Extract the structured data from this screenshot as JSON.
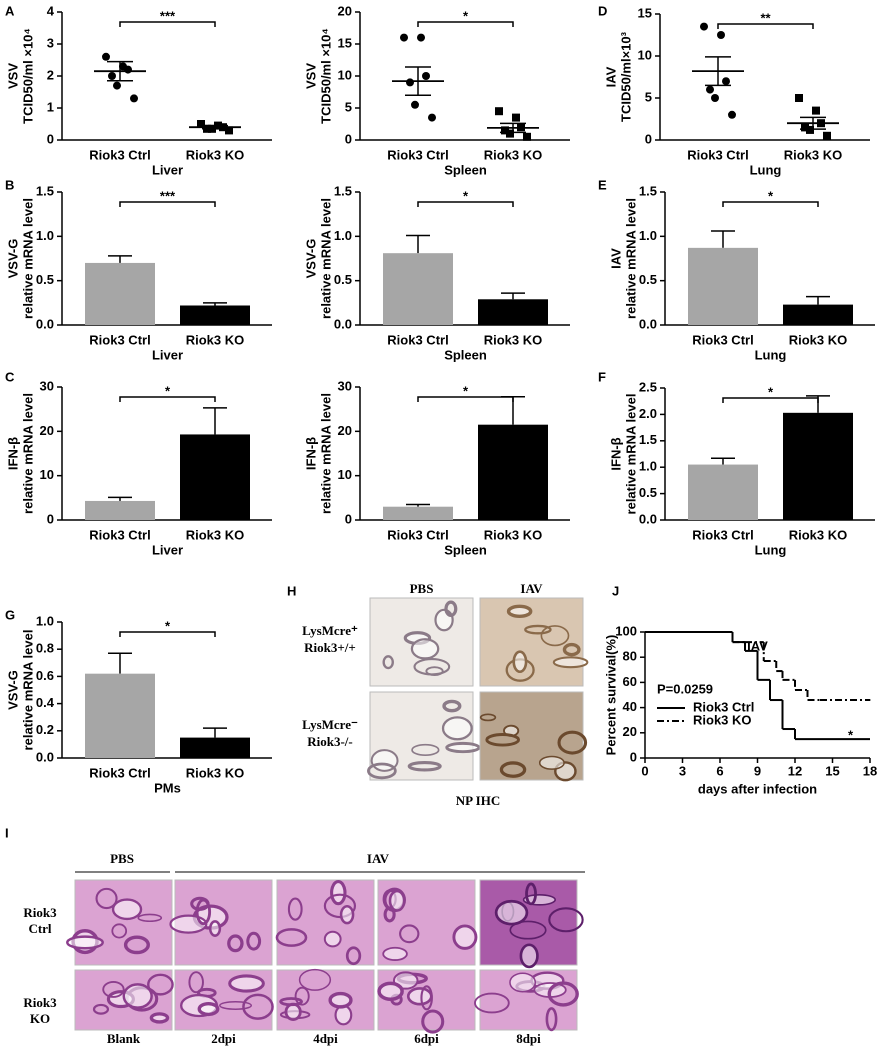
{
  "chart_data": [
    {
      "type": "dotplot",
      "panel": "A",
      "ylabel": [
        "VSV",
        "TCID50/ml ×10⁴"
      ],
      "xlabel": "Liver",
      "categories": [
        "Riok3 Ctrl",
        "Riok3 KO"
      ],
      "ylim": [
        0,
        4
      ],
      "yticks": [
        0,
        1,
        2,
        3,
        4
      ],
      "significance": "***",
      "groups": [
        {
          "marker": "circle",
          "values": [
            2.6,
            2.3,
            2.2,
            2.0,
            1.7,
            1.3
          ],
          "mean": 2.15,
          "sem": 0.3
        },
        {
          "marker": "square",
          "values": [
            0.5,
            0.45,
            0.4,
            0.35,
            0.35,
            0.3
          ],
          "mean": 0.4,
          "sem": 0.05
        }
      ]
    },
    {
      "type": "dotplot",
      "ylabel": [
        "VSV",
        "TCID50/ml ×10⁴"
      ],
      "xlabel": "Spleen",
      "categories": [
        "Riok3 Ctrl",
        "Riok3 KO"
      ],
      "ylim": [
        0,
        20
      ],
      "yticks": [
        0,
        5,
        10,
        15,
        20
      ],
      "significance": "*",
      "groups": [
        {
          "marker": "circle",
          "values": [
            16,
            16,
            10,
            9,
            5.5,
            3.5
          ],
          "mean": 9.2,
          "sem": 2.2
        },
        {
          "marker": "square",
          "values": [
            4.5,
            3.5,
            2,
            1.5,
            1,
            0.5
          ],
          "mean": 1.9,
          "sem": 0.7
        }
      ]
    },
    {
      "type": "dotplot",
      "panel": "D",
      "ylabel": [
        "IAV",
        "TCID50/ml×10³"
      ],
      "xlabel": "Lung",
      "categories": [
        "Riok3 Ctrl",
        "Riok3 KO"
      ],
      "ylim": [
        0,
        15
      ],
      "yticks": [
        0,
        5,
        10,
        15
      ],
      "significance": "**",
      "groups": [
        {
          "marker": "circle",
          "values": [
            13.5,
            12.5,
            7,
            6,
            5,
            3
          ],
          "mean": 8.2,
          "sem": 1.7
        },
        {
          "marker": "square",
          "values": [
            5,
            3.5,
            2,
            1.5,
            1.2,
            0.5
          ],
          "mean": 2,
          "sem": 0.7
        }
      ]
    },
    {
      "type": "bar",
      "panel": "B",
      "ylabel": [
        "VSV-G",
        "relative mRNA level"
      ],
      "xlabel": "Liver",
      "categories": [
        "Riok3 Ctrl",
        "Riok3 KO"
      ],
      "ylim": [
        0,
        1.5
      ],
      "yticks": [
        {
          "value": 0,
          "label": "0.0"
        },
        0.5,
        {
          "value": 1,
          "label": "1.0"
        },
        1.5
      ],
      "significance": "***",
      "values": [
        0.7,
        0.22
      ],
      "errors": [
        0.08,
        0.03
      ],
      "colors": [
        "#a6a6a6",
        "#000000"
      ]
    },
    {
      "type": "bar",
      "ylabel": [
        "VSV-G",
        "relative mRNA level"
      ],
      "xlabel": "Spleen",
      "categories": [
        "Riok3 Ctrl",
        "Riok3 KO"
      ],
      "ylim": [
        0,
        1.5
      ],
      "yticks": [
        {
          "value": 0,
          "label": "0.0"
        },
        0.5,
        {
          "value": 1,
          "label": "1.0"
        },
        1.5
      ],
      "significance": "*",
      "values": [
        0.81,
        0.29
      ],
      "errors": [
        0.2,
        0.07
      ],
      "colors": [
        "#a6a6a6",
        "#000000"
      ]
    },
    {
      "type": "bar",
      "panel": "E",
      "ylabel": [
        "IAV",
        "relative mRNA level"
      ],
      "xlabel": "Lung",
      "categories": [
        "Riok3 Ctrl",
        "Riok3 KO"
      ],
      "ylim": [
        0,
        1.5
      ],
      "yticks": [
        {
          "value": 0,
          "label": "0.0"
        },
        0.5,
        {
          "value": 1,
          "label": "1.0"
        },
        1.5
      ],
      "significance": "*",
      "values": [
        0.87,
        0.23
      ],
      "errors": [
        0.19,
        0.09
      ],
      "colors": [
        "#a6a6a6",
        "#000000"
      ]
    },
    {
      "type": "bar",
      "panel": "C",
      "ylabel": [
        "IFN-β",
        "relative mRNA level"
      ],
      "xlabel": "Liver",
      "categories": [
        "Riok3 Ctrl",
        "Riok3 KO"
      ],
      "ylim": [
        0,
        30
      ],
      "yticks": [
        0,
        10,
        20,
        30
      ],
      "significance": "*",
      "values": [
        4.3,
        19.3
      ],
      "errors": [
        0.8,
        6
      ],
      "colors": [
        "#a6a6a6",
        "#000000"
      ]
    },
    {
      "type": "bar",
      "ylabel": [
        "IFN-β",
        "relative mRNA level"
      ],
      "xlabel": "Spleen",
      "categories": [
        "Riok3 Ctrl",
        "Riok3 KO"
      ],
      "ylim": [
        0,
        30
      ],
      "yticks": [
        0,
        10,
        20,
        30
      ],
      "significance": "*",
      "values": [
        3,
        21.5
      ],
      "errors": [
        0.5,
        6.3
      ],
      "colors": [
        "#a6a6a6",
        "#000000"
      ]
    },
    {
      "type": "bar",
      "panel": "F",
      "ylabel": [
        "IFN-β",
        "relative mRNA level"
      ],
      "xlabel": "Lung",
      "categories": [
        "Riok3 Ctrl",
        "Riok3 KO"
      ],
      "ylim": [
        0,
        2.5
      ],
      "yticks": [
        {
          "value": 0,
          "label": "0.0"
        },
        0.5,
        {
          "value": 1,
          "label": "1.0"
        },
        1.5,
        {
          "value": 2,
          "label": "2.0"
        },
        2.5
      ],
      "significance": "*",
      "values": [
        1.05,
        2.03
      ],
      "errors": [
        0.12,
        0.32
      ],
      "colors": [
        "#a6a6a6",
        "#000000"
      ]
    },
    {
      "type": "bar",
      "panel": "G",
      "ylabel": [
        "VSV-G",
        "relative mRNA level"
      ],
      "xlabel": "PMs",
      "categories": [
        "Riok3 Ctrl",
        "Riok3 KO"
      ],
      "ylim": [
        0,
        1
      ],
      "yticks": [
        {
          "value": 0,
          "label": "0.0"
        },
        0.2,
        0.4,
        0.6,
        0.8,
        {
          "value": 1,
          "label": "1.0"
        }
      ],
      "significance": "*",
      "values": [
        0.62,
        0.15
      ],
      "errors": [
        0.15,
        0.07
      ],
      "colors": [
        "#a6a6a6",
        "#000000"
      ]
    },
    {
      "type": "line",
      "panel": "J",
      "title": "IAV",
      "ylabel": [
        "Percent survival(%)"
      ],
      "xlabel": "days after infection",
      "xlim": [
        0,
        18
      ],
      "xticks": [
        0,
        3,
        6,
        9,
        12,
        15,
        18
      ],
      "ylim": [
        0,
        100
      ],
      "yticks": [
        0,
        20,
        40,
        60,
        80,
        100
      ],
      "legend": "lower left",
      "annotations": [
        "P=0.0259",
        "*"
      ],
      "series": [
        {
          "name": "Riok3 Ctrl",
          "dash": "none",
          "x": [
            0,
            7,
            8,
            9,
            10,
            11,
            12,
            18
          ],
          "values": [
            100,
            92,
            85,
            62,
            46,
            23,
            15,
            15
          ]
        },
        {
          "name": "Riok3 KO",
          "dash": "7,3,2,3",
          "x": [
            0,
            7,
            8,
            9.5,
            10.5,
            11,
            12,
            13,
            14,
            18
          ],
          "values": [
            100,
            92,
            92,
            77,
            69,
            62,
            54,
            46,
            46,
            46
          ]
        }
      ]
    },
    {
      "type": "image-grid",
      "panel": "H",
      "columns": [
        "PBS",
        "IAV"
      ],
      "rows": [
        [
          "LysMcre⁺",
          "Riok3+/+"
        ],
        [
          "LysMcre⁻",
          "Riok3-/-"
        ]
      ],
      "footer": "NP IHC"
    },
    {
      "type": "image-grid",
      "panel": "I",
      "groups": [
        "PBS",
        "IAV"
      ],
      "rows": [
        [
          "Riok3",
          "Ctrl"
        ],
        [
          "Riok3",
          "KO"
        ]
      ],
      "columns": [
        "Blank",
        "2dpi",
        "4dpi",
        "6dpi",
        "8dpi"
      ]
    }
  ]
}
